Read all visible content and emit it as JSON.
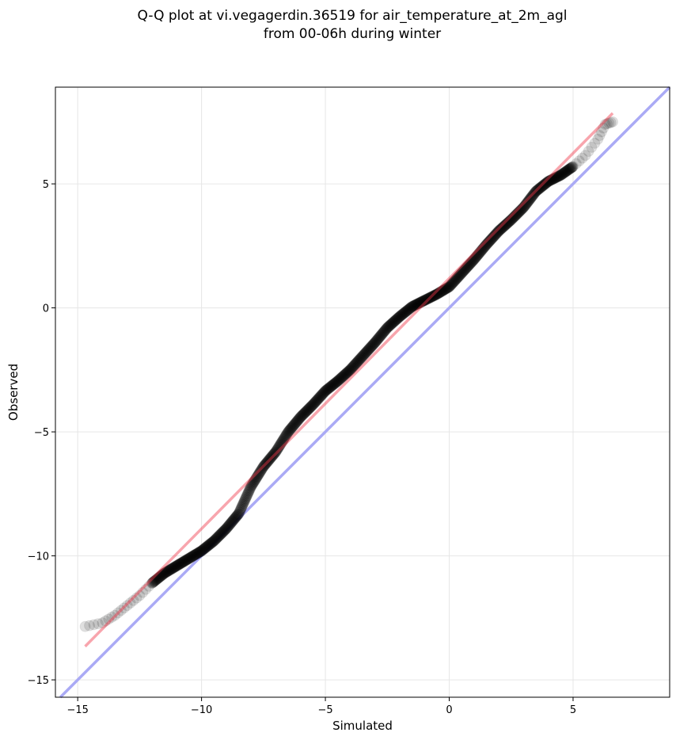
{
  "chart_data": {
    "type": "scatter",
    "title": "Q-Q plot at vi.vegagerdin.36519 for air_temperature_at_2m_agl",
    "subtitle": "from 00-06h during winter",
    "xlabel": "Simulated",
    "ylabel": "Observed",
    "xlim": [
      -15.9,
      8.9
    ],
    "ylim": [
      -15.7,
      8.9
    ],
    "x_ticks": [
      -15,
      -10,
      -5,
      0,
      5
    ],
    "y_ticks": [
      -15,
      -10,
      -5,
      0,
      5
    ],
    "x_tick_labels": [
      "−15",
      "−10",
      "−5",
      "0",
      "5"
    ],
    "y_tick_labels": [
      "−15",
      "−10",
      "−5",
      "0",
      "5"
    ],
    "grid": true,
    "colors": {
      "points": "#000000",
      "fit_line": "#f4a0a8",
      "identity_line": "#aaaaf5"
    },
    "fit_line": {
      "x": [
        -14.7,
        6.6
      ],
      "y": [
        -13.65,
        7.85
      ]
    },
    "identity_line": {
      "x": [
        -15.9,
        8.9
      ],
      "y": [
        -15.9,
        8.9
      ]
    },
    "qq_curve": [
      [
        -14.7,
        -12.85
      ],
      [
        -14.0,
        -12.7
      ],
      [
        -13.5,
        -12.4
      ],
      [
        -13.0,
        -12.0
      ],
      [
        -12.5,
        -11.6
      ],
      [
        -12.0,
        -11.1
      ],
      [
        -11.5,
        -10.7
      ],
      [
        -11.0,
        -10.4
      ],
      [
        -10.5,
        -10.1
      ],
      [
        -10.0,
        -9.8
      ],
      [
        -9.5,
        -9.4
      ],
      [
        -9.0,
        -8.9
      ],
      [
        -8.5,
        -8.3
      ],
      [
        -8.0,
        -7.2
      ],
      [
        -7.5,
        -6.4
      ],
      [
        -7.0,
        -5.8
      ],
      [
        -6.5,
        -5.0
      ],
      [
        -6.0,
        -4.4
      ],
      [
        -5.5,
        -3.9
      ],
      [
        -5.0,
        -3.35
      ],
      [
        -4.5,
        -2.95
      ],
      [
        -4.0,
        -2.5
      ],
      [
        -3.5,
        -1.95
      ],
      [
        -3.0,
        -1.4
      ],
      [
        -2.5,
        -0.8
      ],
      [
        -2.0,
        -0.35
      ],
      [
        -1.5,
        0.05
      ],
      [
        -1.0,
        0.3
      ],
      [
        -0.5,
        0.55
      ],
      [
        0.0,
        0.85
      ],
      [
        0.5,
        1.4
      ],
      [
        1.0,
        1.95
      ],
      [
        1.5,
        2.55
      ],
      [
        2.0,
        3.1
      ],
      [
        2.5,
        3.55
      ],
      [
        3.0,
        4.05
      ],
      [
        3.5,
        4.7
      ],
      [
        4.0,
        5.1
      ],
      [
        4.5,
        5.35
      ],
      [
        5.0,
        5.7
      ],
      [
        5.5,
        6.15
      ],
      [
        6.0,
        6.8
      ],
      [
        6.3,
        7.4
      ],
      [
        6.6,
        7.5
      ]
    ]
  }
}
